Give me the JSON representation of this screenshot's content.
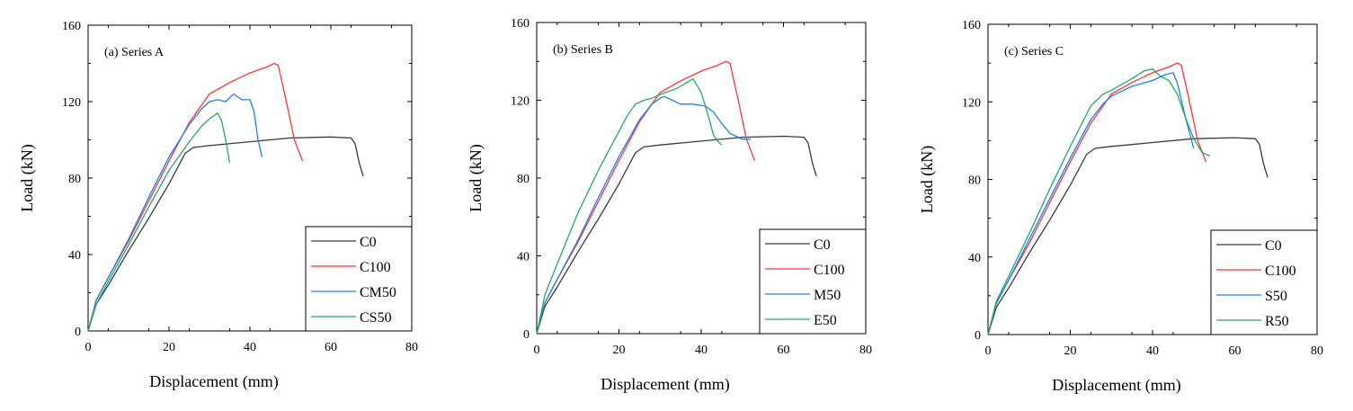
{
  "chart_data": [
    {
      "type": "line",
      "panel_label": "(a) Series A",
      "xlabel": "Displacement (mm)",
      "ylabel": "Load (kN)",
      "xlim": [
        0,
        80
      ],
      "ylim": [
        0,
        160
      ],
      "xticks": [
        "0",
        "20",
        "40",
        "60",
        "80"
      ],
      "yticks": [
        "0",
        "40",
        "80",
        "120",
        "160"
      ],
      "legend_position": "bottom-right",
      "series": [
        {
          "name": "C0",
          "color": "#3a3a3a",
          "x": [
            0,
            2,
            5,
            10,
            15,
            20,
            24,
            26,
            30,
            40,
            50,
            60,
            65,
            66,
            67,
            68
          ],
          "y": [
            0,
            14,
            24,
            42,
            59,
            77,
            93,
            96,
            97,
            99,
            101,
            101.5,
            101,
            98,
            88,
            81
          ]
        },
        {
          "name": "C100",
          "color": "#ff3333",
          "x": [
            0,
            2,
            5,
            10,
            15,
            20,
            25,
            28,
            30,
            35,
            40,
            44,
            46,
            47,
            49,
            51,
            53
          ],
          "y": [
            0,
            16,
            28,
            47,
            68,
            89,
            109,
            118,
            124,
            130,
            135,
            138,
            140,
            139,
            120,
            100,
            89
          ]
        },
        {
          "name": "CM50",
          "color": "#1f7ff0",
          "x": [
            0,
            2,
            5,
            10,
            15,
            20,
            25,
            28,
            30,
            32,
            34,
            36,
            38,
            40,
            41,
            42,
            43
          ],
          "y": [
            0,
            16,
            28,
            48,
            70,
            91,
            108,
            116,
            120,
            121,
            120,
            124,
            121,
            121,
            115,
            100,
            91
          ]
        },
        {
          "name": "CS50",
          "color": "#22aa66",
          "x": [
            0,
            2,
            5,
            10,
            15,
            20,
            25,
            28,
            30,
            32,
            33,
            34,
            35
          ],
          "y": [
            0,
            14,
            26,
            45,
            65,
            84,
            99,
            107,
            111,
            114,
            110,
            100,
            88
          ]
        }
      ]
    },
    {
      "type": "line",
      "panel_label": "(b) Series B",
      "xlabel": "Displacement (mm)",
      "ylabel": "Load (kN)",
      "xlim": [
        0,
        80
      ],
      "ylim": [
        0,
        160
      ],
      "xticks": [
        "0",
        "20",
        "40",
        "60",
        "80"
      ],
      "yticks": [
        "0",
        "40",
        "80",
        "120",
        "160"
      ],
      "legend_position": "bottom-right",
      "series": [
        {
          "name": "C0",
          "color": "#3a3a3a",
          "x": [
            0,
            2,
            5,
            10,
            15,
            20,
            24,
            26,
            30,
            40,
            50,
            60,
            65,
            66,
            67,
            68
          ],
          "y": [
            0,
            14,
            24,
            42,
            59,
            77,
            93,
            96,
            97,
            99,
            101,
            101.5,
            101,
            98,
            88,
            81
          ]
        },
        {
          "name": "C100",
          "color": "#ff3333",
          "x": [
            0,
            2,
            5,
            10,
            15,
            20,
            25,
            28,
            30,
            35,
            40,
            44,
            46,
            47,
            49,
            51,
            53
          ],
          "y": [
            0,
            16,
            28,
            47,
            68,
            89,
            109,
            118,
            124,
            130,
            135,
            138,
            140,
            139,
            120,
            100,
            89
          ]
        },
        {
          "name": "M50",
          "color": "#1f7ff0",
          "x": [
            0,
            2,
            5,
            10,
            15,
            20,
            25,
            28,
            30,
            31,
            33,
            35,
            38,
            41,
            43,
            45,
            47,
            48,
            50,
            52
          ],
          "y": [
            0,
            16,
            28,
            48,
            70,
            91,
            110,
            118,
            121,
            122,
            120,
            118,
            118,
            117,
            114,
            108,
            103,
            102,
            100,
            100
          ]
        },
        {
          "name": "E50",
          "color": "#22aa66",
          "x": [
            0,
            2,
            5,
            10,
            15,
            20,
            22,
            24,
            26,
            28,
            30,
            34,
            38,
            40,
            42,
            43,
            44,
            45
          ],
          "y": [
            0,
            20,
            36,
            62,
            84,
            104,
            112,
            118,
            120,
            121,
            123,
            126,
            131,
            124,
            110,
            102,
            99,
            97
          ]
        }
      ]
    },
    {
      "type": "line",
      "panel_label": "(c) Series C",
      "xlabel": "Displacement (mm)",
      "ylabel": "Load (kN)",
      "xlim": [
        0,
        80
      ],
      "ylim": [
        0,
        160
      ],
      "xticks": [
        "0",
        "20",
        "40",
        "60",
        "80"
      ],
      "yticks": [
        "0",
        "40",
        "80",
        "120",
        "160"
      ],
      "legend_position": "bottom-right",
      "series": [
        {
          "name": "C0",
          "color": "#3a3a3a",
          "x": [
            0,
            2,
            5,
            10,
            15,
            20,
            24,
            26,
            30,
            40,
            50,
            60,
            65,
            66,
            67,
            68
          ],
          "y": [
            0,
            14,
            24,
            42,
            59,
            77,
            93,
            96,
            97,
            99,
            101,
            101.5,
            101,
            98,
            88,
            81
          ]
        },
        {
          "name": "C100",
          "color": "#ff3333",
          "x": [
            0,
            2,
            5,
            10,
            15,
            20,
            25,
            28,
            30,
            35,
            40,
            44,
            46,
            47,
            49,
            51,
            53
          ],
          "y": [
            0,
            16,
            28,
            47,
            68,
            89,
            109,
            118,
            124,
            130,
            135,
            138,
            140,
            139,
            120,
            100,
            89
          ]
        },
        {
          "name": "S50",
          "color": "#1f7ff0",
          "x": [
            0,
            2,
            5,
            10,
            15,
            20,
            25,
            28,
            30,
            35,
            40,
            43,
            45,
            46,
            48,
            50
          ],
          "y": [
            0,
            16,
            28,
            49,
            70,
            91,
            111,
            119,
            123,
            128,
            131,
            134,
            135,
            130,
            112,
            96
          ]
        },
        {
          "name": "R50",
          "color": "#22aa66",
          "x": [
            0,
            2,
            5,
            10,
            15,
            20,
            25,
            28,
            30,
            35,
            38,
            40,
            42,
            44,
            46,
            48,
            50,
            52,
            54
          ],
          "y": [
            0,
            17,
            30,
            52,
            75,
            97,
            118,
            124,
            126,
            132,
            136,
            137,
            133,
            131,
            124,
            112,
            101,
            94,
            92
          ]
        }
      ]
    }
  ]
}
